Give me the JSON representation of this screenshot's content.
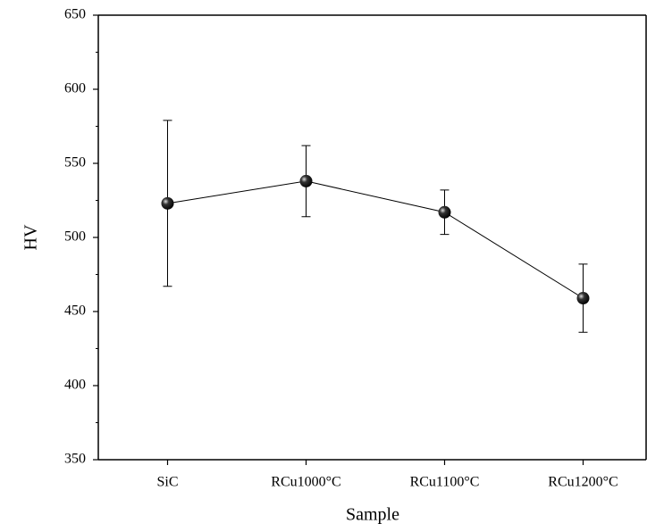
{
  "chart_data": {
    "type": "line",
    "x_label": "Sample",
    "y_label": "HV",
    "categories": [
      "SiC",
      "RCu1000°C",
      "RCu1100°C",
      "RCu1200°C"
    ],
    "values": [
      523,
      538,
      517,
      459
    ],
    "errors": [
      56,
      24,
      15,
      23
    ],
    "color": "#000000",
    "ylim": [
      350,
      650
    ],
    "yticks": [
      350,
      400,
      450,
      500,
      550,
      600,
      650
    ],
    "grid": false
  }
}
